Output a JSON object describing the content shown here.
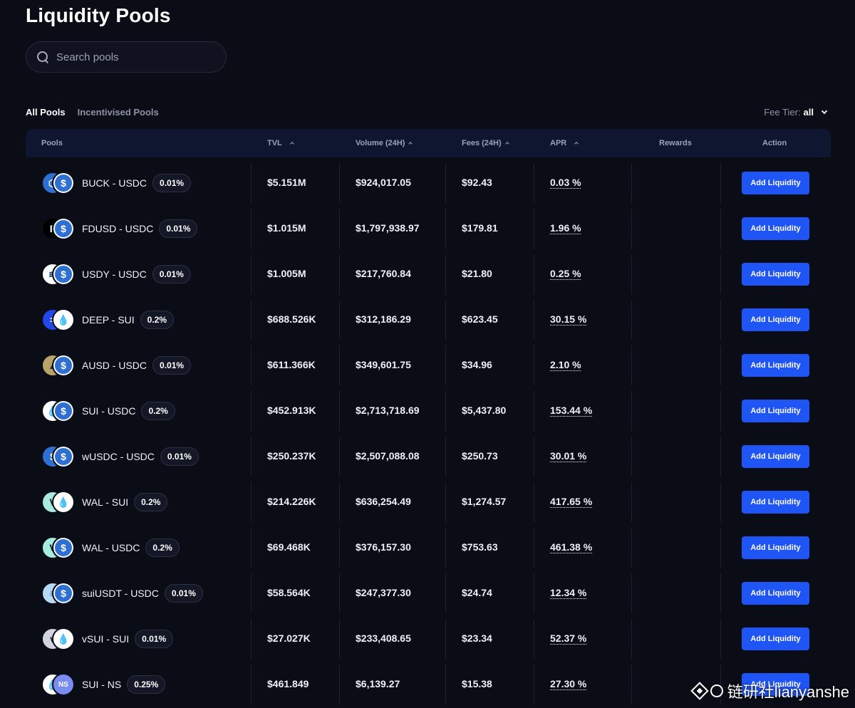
{
  "page": {
    "title": "Liquidity Pools"
  },
  "search": {
    "placeholder": "Search pools"
  },
  "tabs": [
    {
      "label": "All Pools",
      "active": true
    },
    {
      "label": "Incentivised Pools",
      "active": false
    }
  ],
  "fee_tier": {
    "label": "Fee Tier:",
    "value": "all"
  },
  "columns": {
    "pools": "Pools",
    "tvl": "TVL",
    "volume": "Volume (24H)",
    "fees": "Fees (24H)",
    "apr": "APR",
    "rewards": "Rewards",
    "action": "Action"
  },
  "colors": {
    "accent": "#1f54f5",
    "background": "#0a0c16",
    "header": "#0f1730"
  },
  "pools": [
    {
      "pair": "BUCK - USDC",
      "fee": "0.01%",
      "tvl": "$5.151M",
      "volume": "$924,017.05",
      "fees": "$92.43",
      "apr": "0.03 %",
      "action": "Add Liquidity",
      "icon_a": "buck-icon",
      "icon_b": "usdc-icon"
    },
    {
      "pair": "FDUSD - USDC",
      "fee": "0.01%",
      "tvl": "$1.015M",
      "volume": "$1,797,938.97",
      "fees": "$179.81",
      "apr": "1.96 %",
      "action": "Add Liquidity",
      "icon_a": "fdusd-icon",
      "icon_b": "usdc-icon"
    },
    {
      "pair": "USDY - USDC",
      "fee": "0.01%",
      "tvl": "$1.005M",
      "volume": "$217,760.84",
      "fees": "$21.80",
      "apr": "0.25 %",
      "action": "Add Liquidity",
      "icon_a": "usdy-icon",
      "icon_b": "usdc-icon"
    },
    {
      "pair": "DEEP - SUI",
      "fee": "0.2%",
      "tvl": "$688.526K",
      "volume": "$312,186.29",
      "fees": "$623.45",
      "apr": "30.15 %",
      "action": "Add Liquidity",
      "icon_a": "deep-icon",
      "icon_b": "sui-icon"
    },
    {
      "pair": "AUSD - USDC",
      "fee": "0.01%",
      "tvl": "$611.366K",
      "volume": "$349,601.75",
      "fees": "$34.96",
      "apr": "2.10 %",
      "action": "Add Liquidity",
      "icon_a": "ausd-icon",
      "icon_b": "usdc-icon"
    },
    {
      "pair": "SUI - USDC",
      "fee": "0.2%",
      "tvl": "$452.913K",
      "volume": "$2,713,718.69",
      "fees": "$5,437.80",
      "apr": "153.44 %",
      "action": "Add Liquidity",
      "icon_a": "sui-icon",
      "icon_b": "usdc-icon"
    },
    {
      "pair": "wUSDC - USDC",
      "fee": "0.01%",
      "tvl": "$250.237K",
      "volume": "$2,507,088.08",
      "fees": "$250.73",
      "apr": "30.01 %",
      "action": "Add Liquidity",
      "icon_a": "wusdc-icon",
      "icon_b": "usdc-icon"
    },
    {
      "pair": "WAL - SUI",
      "fee": "0.2%",
      "tvl": "$214.226K",
      "volume": "$636,254.49",
      "fees": "$1,274.57",
      "apr": "417.65 %",
      "action": "Add Liquidity",
      "icon_a": "wal-icon",
      "icon_b": "sui-icon"
    },
    {
      "pair": "WAL - USDC",
      "fee": "0.2%",
      "tvl": "$69.468K",
      "volume": "$376,157.30",
      "fees": "$753.63",
      "apr": "461.38 %",
      "action": "Add Liquidity",
      "icon_a": "wal-icon",
      "icon_b": "usdc-icon"
    },
    {
      "pair": "suiUSDT - USDC",
      "fee": "0.01%",
      "tvl": "$58.564K",
      "volume": "$247,377.30",
      "fees": "$24.74",
      "apr": "12.34 %",
      "action": "Add Liquidity",
      "icon_a": "suiusdt-icon",
      "icon_b": "usdc-icon"
    },
    {
      "pair": "vSUI - SUI",
      "fee": "0.01%",
      "tvl": "$27.027K",
      "volume": "$233,408.65",
      "fees": "$23.34",
      "apr": "52.37 %",
      "action": "Add Liquidity",
      "icon_a": "vsui-icon",
      "icon_b": "sui-icon"
    },
    {
      "pair": "SUI - NS",
      "fee": "0.25%",
      "tvl": "$461.849",
      "volume": "$6,139.27",
      "fees": "$15.38",
      "apr": "27.30 %",
      "action": "Add Liquidity",
      "icon_a": "sui-icon",
      "icon_b": "ns-icon"
    }
  ],
  "watermark": {
    "text": "链研社lianyanshe"
  }
}
